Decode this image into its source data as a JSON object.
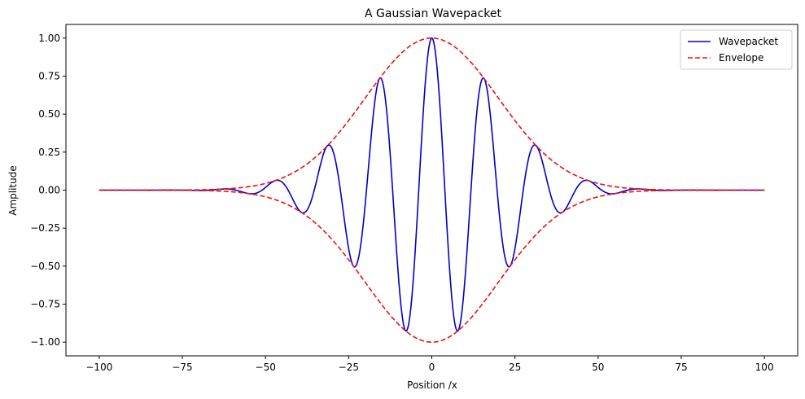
{
  "chart_data": {
    "type": "line",
    "title": "A Gaussian Wavepacket",
    "xlabel": "Position /x",
    "ylabel": "Amplitude",
    "xlim": [
      -110,
      110
    ],
    "ylim": [
      -1.09,
      1.09
    ],
    "xticks": [
      -100,
      -75,
      -50,
      -25,
      0,
      25,
      50,
      75,
      100
    ],
    "xtick_labels": [
      "−100",
      "−75",
      "−50",
      "−25",
      "0",
      "25",
      "50",
      "75",
      "100"
    ],
    "yticks": [
      -1.0,
      -0.75,
      -0.5,
      -0.25,
      0.0,
      0.25,
      0.5,
      0.75,
      1.0
    ],
    "ytick_labels": [
      "−1.00",
      "−0.75",
      "−0.50",
      "−0.25",
      "0.00",
      "0.25",
      "0.50",
      "0.75",
      "1.00"
    ],
    "grid": false,
    "legend_position": "top-right",
    "x_range": [
      -100,
      100
    ],
    "sample_count": 1000,
    "series": [
      {
        "name": "Wavepacket",
        "color": "#0000cc",
        "style": "solid",
        "formula": "exp(-x^2/(2*20^2)) * cos(0.4*x)",
        "envelope_sigma": 20,
        "wavenumber": 0.4
      },
      {
        "name": "Envelope",
        "color": "#ee1111",
        "style": "dashed",
        "formula": "±exp(-x^2/(2*20^2))",
        "envelope_sigma": 20
      }
    ]
  }
}
